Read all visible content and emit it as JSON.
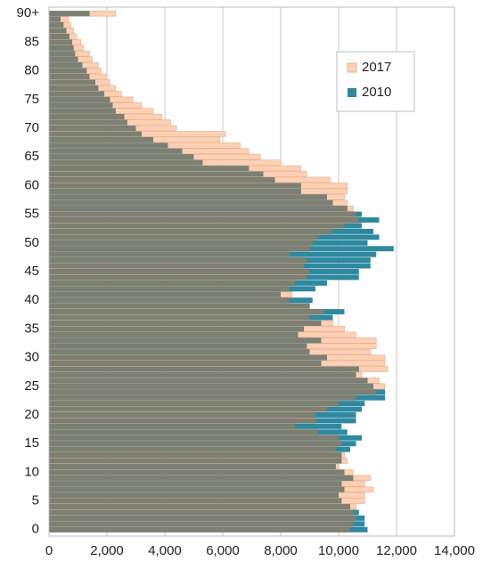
{
  "chart_data": {
    "type": "bar",
    "orientation": "horizontal",
    "overlap": true,
    "categories": [
      "0",
      null,
      null,
      null,
      null,
      "5",
      null,
      null,
      null,
      null,
      "10",
      null,
      null,
      null,
      null,
      "15",
      null,
      null,
      null,
      null,
      "20",
      null,
      null,
      null,
      null,
      "25",
      null,
      null,
      null,
      null,
      "30",
      null,
      null,
      null,
      null,
      "35",
      null,
      null,
      null,
      null,
      "40",
      null,
      null,
      null,
      null,
      "45",
      null,
      null,
      null,
      null,
      "50",
      null,
      null,
      null,
      null,
      "55",
      null,
      null,
      null,
      null,
      "60",
      null,
      null,
      null,
      null,
      "65",
      null,
      null,
      null,
      null,
      "70",
      null,
      null,
      null,
      null,
      "75",
      null,
      null,
      null,
      null,
      "80",
      null,
      null,
      null,
      null,
      "85",
      null,
      null,
      null,
      null,
      "90+"
    ],
    "series": [
      {
        "name": "2017",
        "color": "#fcd0b4",
        "values": [
          10400,
          10500,
          10600,
          10500,
          10600,
          10900,
          10900,
          11200,
          10900,
          11100,
          10500,
          10000,
          10300,
          10200,
          9900,
          10100,
          10000,
          9300,
          8500,
          9200,
          9200,
          9600,
          10000,
          10600,
          11300,
          11600,
          11400,
          10800,
          11700,
          11600,
          11600,
          11100,
          11300,
          11300,
          10600,
          10200,
          9800,
          9000,
          9500,
          9000,
          8300,
          8400,
          8300,
          8500,
          8900,
          9000,
          8800,
          8900,
          8300,
          9000,
          9100,
          9300,
          9800,
          10200,
          10700,
          10600,
          10500,
          10300,
          10200,
          10300,
          10300,
          9700,
          8900,
          8700,
          8000,
          7300,
          6900,
          6600,
          5900,
          6100,
          4400,
          4200,
          3900,
          3600,
          3200,
          2900,
          2500,
          2300,
          2100,
          2000,
          1800,
          1700,
          1500,
          1400,
          1200,
          1100,
          950,
          850,
          750,
          680,
          2300
        ]
      },
      {
        "name": "2010",
        "color": "#2e89a0",
        "values": [
          11000,
          10900,
          10900,
          10700,
          10400,
          10100,
          10000,
          10200,
          10100,
          10500,
          10200,
          9900,
          10100,
          10100,
          10400,
          10600,
          10800,
          10300,
          10100,
          10600,
          10600,
          10800,
          10900,
          11600,
          11600,
          11200,
          11000,
          10600,
          10700,
          9400,
          9600,
          9000,
          8900,
          9400,
          8600,
          8800,
          9400,
          9800,
          10200,
          9000,
          9100,
          8000,
          9200,
          9600,
          10700,
          10700,
          11100,
          11100,
          11300,
          11900,
          11000,
          11400,
          11200,
          10800,
          11400,
          10800,
          10300,
          9800,
          9600,
          8700,
          8700,
          7800,
          7400,
          6900,
          5300,
          5000,
          4600,
          4100,
          3600,
          3200,
          3000,
          2700,
          2600,
          2300,
          2200,
          2100,
          1900,
          1700,
          1600,
          1400,
          1300,
          1150,
          1000,
          900,
          850,
          800,
          700,
          600,
          500,
          400,
          1400
        ]
      }
    ],
    "xlim": [
      0,
      14000
    ],
    "xticks": [
      0,
      {
        "value": 2000,
        "label": "2,000"
      },
      {
        "value": 4000,
        "label": "4,000"
      },
      {
        "value": 6000,
        "label": "6,000"
      },
      {
        "value": 8000,
        "label": "8,000"
      },
      {
        "value": 10000,
        "label": "10,000"
      },
      {
        "value": 12000,
        "label": "12,000"
      },
      {
        "value": 14000,
        "label": "14,000"
      }
    ],
    "grid": true,
    "legend": "upper right"
  }
}
